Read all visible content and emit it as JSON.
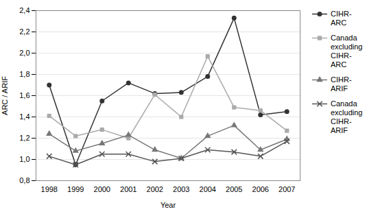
{
  "chart_data": {
    "type": "line",
    "xlabel": "Year",
    "ylabel": "ARC / ARIF",
    "x": [
      1998,
      1999,
      2000,
      2001,
      2002,
      2003,
      2004,
      2005,
      2006,
      2007
    ],
    "series": [
      {
        "name": "CIHR-\nARC",
        "color": "#333333",
        "marker": "circle",
        "values": [
          1.7,
          0.95,
          1.55,
          1.72,
          1.62,
          1.63,
          1.78,
          2.33,
          1.42,
          1.45
        ]
      },
      {
        "name": "Canada\nexcluding\nCIHR-\nARC",
        "color": "#aaaaaa",
        "marker": "square",
        "values": [
          1.41,
          1.22,
          1.28,
          1.2,
          1.61,
          1.4,
          1.97,
          1.49,
          1.46,
          1.27
        ]
      },
      {
        "name": "CIHR-\nARIF",
        "color": "#777777",
        "marker": "triangle",
        "values": [
          1.24,
          1.08,
          1.15,
          1.23,
          1.09,
          1.01,
          1.22,
          1.32,
          1.09,
          1.19
        ]
      },
      {
        "name": "Canada\nexcluding\nCIHR-\nARIF",
        "color": "#555555",
        "marker": "times",
        "values": [
          1.03,
          0.95,
          1.05,
          1.05,
          0.98,
          1.01,
          1.09,
          1.07,
          1.03,
          1.17
        ]
      }
    ],
    "xlim": [
      1997.5,
      2007.5
    ],
    "xticks": [
      1998,
      1999,
      2000,
      2001,
      2002,
      2003,
      2004,
      2005,
      2006,
      2007
    ],
    "ylim": [
      0.8,
      2.4
    ],
    "yticks": [
      {
        "value": 0.8,
        "label": "0,8"
      },
      {
        "value": 1.0,
        "label": "1,0"
      },
      {
        "value": 1.2,
        "label": "1,2"
      },
      {
        "value": 1.4,
        "label": "1,4"
      },
      {
        "value": 1.6,
        "label": "1,6"
      },
      {
        "value": 1.8,
        "label": "1,8"
      },
      {
        "value": 2.0,
        "label": "2,0"
      },
      {
        "value": 2.2,
        "label": "2,2"
      },
      {
        "value": 2.4,
        "label": "2,4"
      }
    ],
    "grid": true,
    "legend": "right"
  }
}
